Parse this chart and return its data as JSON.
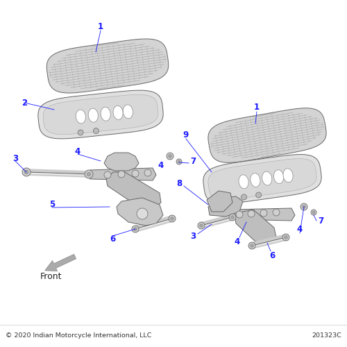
{
  "bg_color": "#ffffff",
  "label_color": "#1a1aff",
  "part_color": "#d0d0d0",
  "part_color2": "#c8c8c8",
  "part_edge_color": "#666666",
  "shadow_color": "#b0b0b0",
  "chrome_color": "#e8e8e8",
  "bracket_color": "#c0c0c0",
  "bolt_color": "#cccccc",
  "pin_color": "#bbbbbb",
  "copyright_text": "© 2020 Indian Motorcycle International, LLC",
  "part_number_text": "201323C",
  "front_text": "Front"
}
